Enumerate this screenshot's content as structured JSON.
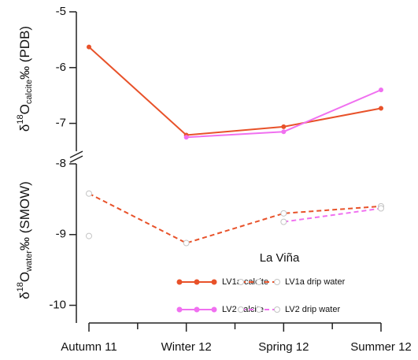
{
  "chart_data": {
    "type": "line",
    "categories": [
      "Autumn 11",
      "Winter 12",
      "Spring 12",
      "Summer 12"
    ],
    "ylabel": [
      "δ",
      "18",
      "O",
      "calcite",
      "‰ (PDB)"
    ],
    "y2label": [
      "δ",
      "18",
      "O",
      "water",
      "‰ (SMOW)"
    ],
    "ylim": [
      -7.5,
      -5
    ],
    "yticks": [
      -5,
      -6,
      -7
    ],
    "y2lim": [
      -10.25,
      -8
    ],
    "y2ticks": [
      -8,
      -9,
      -10
    ],
    "legend_title": "La Viña",
    "series": [
      {
        "name": "LV1a calcite",
        "color": "#e8522a",
        "dash": false,
        "marker": "filled",
        "values": [
          -5.63,
          -7.21,
          -7.06,
          -6.73
        ]
      },
      {
        "name": "LV1a drip water",
        "color": "#e8522a",
        "dash": true,
        "marker": "hollow",
        "axis": "y2",
        "values": [
          -8.42,
          -9.12,
          -8.7,
          -8.6
        ]
      },
      {
        "name": "LV2 calcite",
        "color": "#f070f0",
        "dash": false,
        "marker": "filled",
        "values": [
          null,
          -7.25,
          -7.15,
          -6.4
        ]
      },
      {
        "name": "LV2 drip water",
        "color": "#f070f0",
        "dash": true,
        "marker": "hollow",
        "axis": "y2",
        "values": [
          -9.02,
          null,
          -8.82,
          -8.63
        ]
      }
    ]
  }
}
